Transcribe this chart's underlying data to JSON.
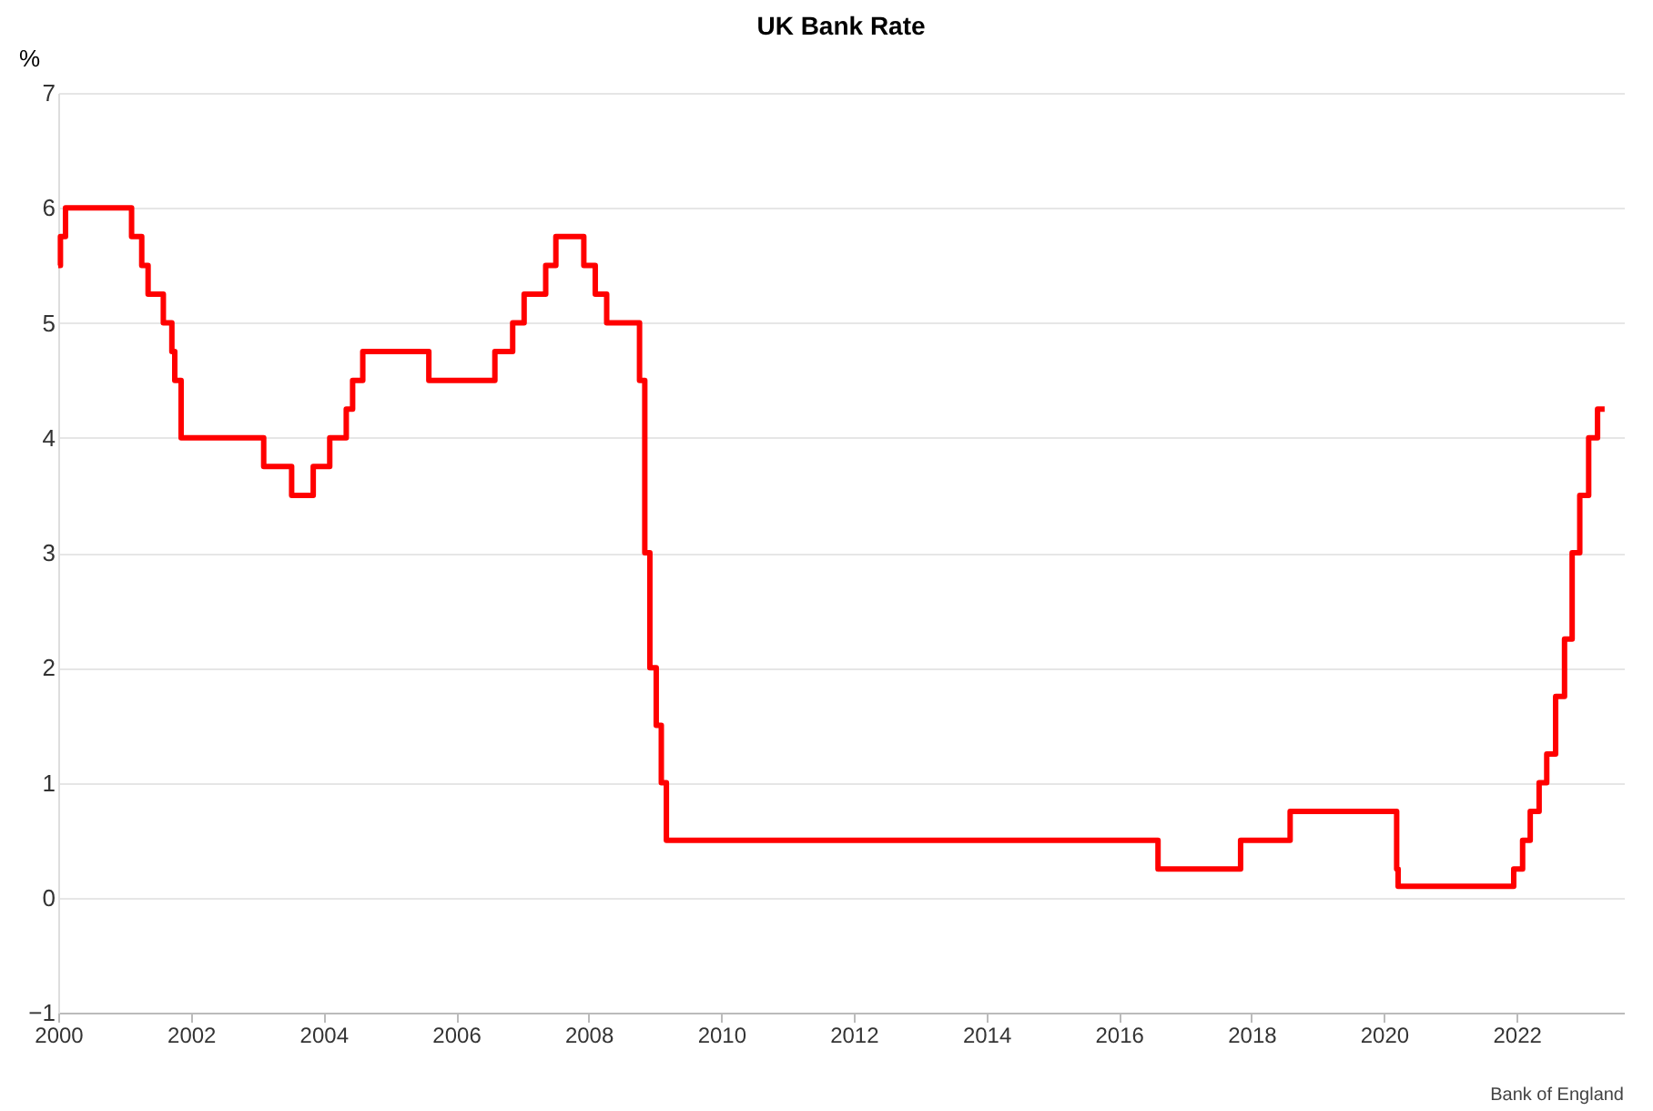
{
  "chart_data": {
    "type": "step",
    "title": "UK Bank Rate",
    "ylabel": "%",
    "x": [
      "2000-01-01",
      "2000-01-13",
      "2000-02-10",
      "2001-02-08",
      "2001-04-05",
      "2001-05-10",
      "2001-08-02",
      "2001-09-18",
      "2001-10-04",
      "2001-11-08",
      "2003-02-06",
      "2003-07-10",
      "2003-11-06",
      "2004-02-05",
      "2004-05-06",
      "2004-06-10",
      "2004-08-05",
      "2005-08-04",
      "2006-08-03",
      "2006-11-09",
      "2007-01-11",
      "2007-05-10",
      "2007-07-05",
      "2007-12-06",
      "2008-02-07",
      "2008-04-10",
      "2008-10-08",
      "2008-11-06",
      "2008-12-04",
      "2009-01-08",
      "2009-02-05",
      "2009-03-05",
      "2016-08-04",
      "2017-11-02",
      "2018-08-02",
      "2020-03-11",
      "2020-03-19",
      "2021-12-16",
      "2022-02-03",
      "2022-03-17",
      "2022-05-05",
      "2022-06-16",
      "2022-08-04",
      "2022-09-22",
      "2022-11-03",
      "2022-12-15",
      "2023-02-02",
      "2023-03-23",
      "2023-05-01"
    ],
    "series": [
      {
        "color": "#ff0000",
        "values": [
          5.5,
          5.75,
          6.0,
          5.75,
          5.5,
          5.25,
          5.0,
          4.75,
          4.5,
          4.0,
          3.75,
          3.5,
          3.75,
          4.0,
          4.25,
          4.5,
          4.75,
          4.5,
          4.75,
          5.0,
          5.25,
          5.5,
          5.75,
          5.5,
          5.25,
          5.0,
          4.5,
          3.0,
          2.0,
          1.5,
          1.0,
          0.5,
          0.25,
          0.5,
          0.75,
          0.25,
          0.1,
          0.25,
          0.5,
          0.75,
          1.0,
          1.25,
          1.75,
          2.25,
          3.0,
          3.5,
          4.0,
          4.25,
          4.25
        ]
      }
    ],
    "xlim": [
      "2000-01-01",
      "2023-08-15"
    ],
    "xticks": [
      "2000",
      "2002",
      "2004",
      "2006",
      "2008",
      "2010",
      "2012",
      "2014",
      "2016",
      "2018",
      "2020",
      "2022"
    ],
    "ylim": [
      -1,
      7
    ],
    "yticks": [
      -1,
      0,
      1,
      2,
      3,
      4,
      5,
      6,
      7
    ],
    "grid": "y",
    "legend": false,
    "line_style": "solid",
    "annotations": [
      "Bank of England"
    ]
  }
}
